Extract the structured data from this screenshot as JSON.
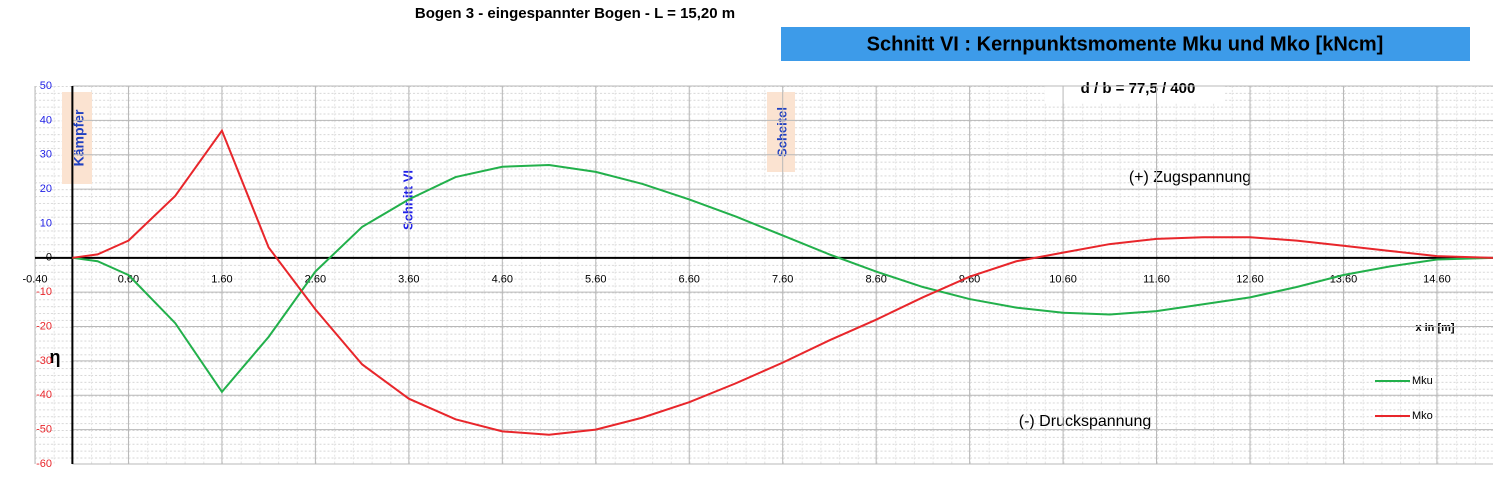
{
  "chart_data": {
    "type": "line",
    "title": "Bogen 3 - eingespannter Bogen - L = 15,20 m",
    "subtitle": "Schnitt VI  : Kernpunktsmomente Mku und Mko [kNcm]",
    "section_info": "d / b = 77,5 / 400",
    "annotations": [
      "Kämpfer",
      "Schnitt VI",
      "Scheitel",
      "(+) Zugspannung",
      "(-) Druckspannung"
    ],
    "x_label": "x      in [m]",
    "y_label": "η",
    "x": [
      0,
      0.27,
      0.6,
      1.1,
      1.6,
      2.1,
      2.6,
      3.1,
      3.6,
      4.1,
      4.6,
      5.1,
      5.6,
      6.1,
      6.6,
      7.1,
      7.6,
      8.1,
      8.6,
      9.1,
      9.6,
      10.1,
      10.6,
      11.1,
      11.6,
      12.1,
      12.6,
      13.1,
      13.6,
      14.1,
      14.6,
      15.2
    ],
    "series": [
      {
        "name": "Mku",
        "color": "#22b04b",
        "values": [
          0,
          -1,
          -5,
          -19,
          -39,
          -23,
          -4,
          9,
          17,
          23.5,
          26.5,
          27,
          25,
          21.5,
          17,
          12,
          6.5,
          1,
          -4,
          -8.5,
          -12,
          -14.5,
          -16,
          -16.5,
          -15.5,
          -13.5,
          -11.5,
          -8.5,
          -5,
          -2.5,
          -0.5,
          0
        ]
      },
      {
        "name": "Mko",
        "color": "#e8262b",
        "values": [
          0,
          1,
          5,
          18,
          37,
          3,
          -15,
          -31,
          -41,
          -47,
          -50.5,
          -51.5,
          -50,
          -46.5,
          -42,
          -36.5,
          -30.5,
          -24,
          -18,
          -11.5,
          -5.5,
          -1,
          1.5,
          4,
          5.5,
          6,
          6,
          5,
          3.5,
          2,
          0.5,
          0
        ]
      }
    ],
    "xlim": [
      -0.4,
      15.2
    ],
    "ylim": [
      -60,
      50
    ],
    "xticks": [
      {
        "value": -0.4,
        "label": "-0.40"
      },
      {
        "value": 0.6,
        "label": "0.60"
      },
      {
        "value": 1.6,
        "label": "1.60"
      },
      {
        "value": 2.6,
        "label": "2.60"
      },
      {
        "value": 3.6,
        "label": "3.60"
      },
      {
        "value": 4.6,
        "label": "4.60"
      },
      {
        "value": 5.6,
        "label": "5.60"
      },
      {
        "value": 6.6,
        "label": "6.60"
      },
      {
        "value": 7.6,
        "label": "7.60"
      },
      {
        "value": 8.6,
        "label": "8.60"
      },
      {
        "value": 9.6,
        "label": "9.60"
      },
      {
        "value": 10.6,
        "label": "10.60"
      },
      {
        "value": 11.6,
        "label": "11.60"
      },
      {
        "value": 12.6,
        "label": "12.60"
      },
      {
        "value": 13.6,
        "label": "13.60"
      },
      {
        "value": 14.6,
        "label": "14.60"
      }
    ],
    "yticks": [
      50,
      40,
      30,
      20,
      10,
      0,
      -10,
      -20,
      -30,
      -40,
      -50,
      -60
    ],
    "grid": true,
    "legend": "bottom-right"
  }
}
